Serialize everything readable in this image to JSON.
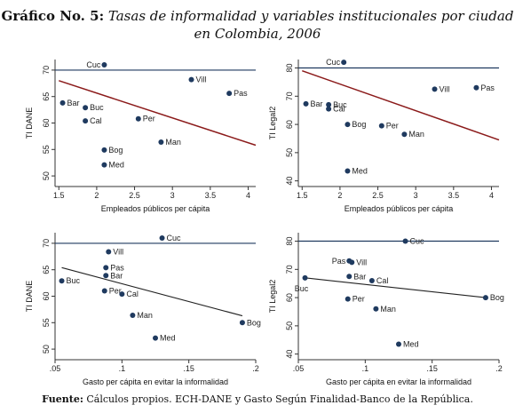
{
  "header": {
    "title_prefix": "Gráfico No. 5:",
    "title_line1": "Tasas de informalidad y variables institucionales  por ciudad",
    "title_line2": "en Colombia, 2006"
  },
  "footer": {
    "source_label": "Fuente:",
    "source_text": "Cálculos propios. ECH-DANE y Gasto Según Finalidad-Banco de la República."
  },
  "colors": {
    "points": "#1f3a5f",
    "fit_line": "#8b1a1a",
    "ref_line": "#1f3a5f"
  },
  "chart_data": [
    {
      "type": "scatter",
      "xlabel": "Empleados públicos per cápita",
      "ylabel": "TI DANE",
      "xlim": [
        1.45,
        4.1
      ],
      "ylim": [
        48,
        72
      ],
      "xticks": [
        1.5,
        2,
        2.5,
        3,
        3.5,
        4
      ],
      "xtick_labels": [
        "1.5",
        "2",
        "2.5",
        "3",
        "3.5",
        "4"
      ],
      "yticks": [
        50,
        55,
        60,
        65,
        70
      ],
      "ytick_labels": [
        "50",
        "55",
        "60",
        "65",
        "70"
      ],
      "hline": 70,
      "fit": [
        [
          1.5,
          68.0
        ],
        [
          4.1,
          55.8
        ]
      ],
      "points": [
        {
          "label": "Cuc",
          "x": 2.1,
          "y": 71.0
        },
        {
          "label": "Vill",
          "x": 3.25,
          "y": 68.2
        },
        {
          "label": "Pas",
          "x": 3.75,
          "y": 65.6
        },
        {
          "label": "Bar",
          "x": 1.55,
          "y": 63.8
        },
        {
          "label": "Buc",
          "x": 1.85,
          "y": 62.9
        },
        {
          "label": "Per",
          "x": 2.55,
          "y": 60.8
        },
        {
          "label": "Cal",
          "x": 1.85,
          "y": 60.4
        },
        {
          "label": "Man",
          "x": 2.85,
          "y": 56.4
        },
        {
          "label": "Bog",
          "x": 2.1,
          "y": 54.9
        },
        {
          "label": "Med",
          "x": 2.1,
          "y": 52.1
        }
      ]
    },
    {
      "type": "scatter",
      "xlabel": "Empleados públicos per cápita",
      "ylabel": "TI Legal2",
      "xlim": [
        1.45,
        4.1
      ],
      "ylim": [
        38,
        83
      ],
      "xticks": [
        1.5,
        2,
        2.5,
        3,
        3.5,
        4
      ],
      "xtick_labels": [
        "1.5",
        "2",
        "2.5",
        "3",
        "3.5",
        "4"
      ],
      "yticks": [
        40,
        50,
        60,
        70,
        80
      ],
      "ytick_labels": [
        "40",
        "50",
        "60",
        "70",
        "80"
      ],
      "hline": 80,
      "fit": [
        [
          1.5,
          79.0
        ],
        [
          4.1,
          54.5
        ]
      ],
      "points": [
        {
          "label": "Cuc",
          "x": 2.05,
          "y": 82.0
        },
        {
          "label": "Vill",
          "x": 3.25,
          "y": 72.5
        },
        {
          "label": "Pas",
          "x": 3.8,
          "y": 73.0
        },
        {
          "label": "Bar",
          "x": 1.55,
          "y": 67.3
        },
        {
          "label": "Buc",
          "x": 1.85,
          "y": 67.0
        },
        {
          "label": "Cal",
          "x": 1.85,
          "y": 65.5
        },
        {
          "label": "Bog",
          "x": 2.1,
          "y": 60.0
        },
        {
          "label": "Per",
          "x": 2.55,
          "y": 59.5
        },
        {
          "label": "Man",
          "x": 2.85,
          "y": 56.5
        },
        {
          "label": "Med",
          "x": 2.1,
          "y": 43.5
        }
      ]
    },
    {
      "type": "scatter",
      "xlabel": "Gasto per cápita en evitar la informalidad",
      "ylabel": "TI DANE",
      "xlim": [
        0.05,
        0.2
      ],
      "ylim": [
        48,
        72
      ],
      "xticks": [
        0.05,
        0.1,
        0.15,
        0.2
      ],
      "xtick_labels": [
        ".05",
        ".1",
        ".15",
        ".2"
      ],
      "yticks": [
        50,
        55,
        60,
        65,
        70
      ],
      "ytick_labels": [
        "50",
        "55",
        "60",
        "65",
        "70"
      ],
      "hline": 70,
      "fit": [
        [
          0.055,
          65.4
        ],
        [
          0.19,
          56.3
        ]
      ],
      "points": [
        {
          "label": "Cuc",
          "x": 0.13,
          "y": 71.0
        },
        {
          "label": "Vill",
          "x": 0.09,
          "y": 68.4
        },
        {
          "label": "Pas",
          "x": 0.088,
          "y": 65.4
        },
        {
          "label": "Bar",
          "x": 0.088,
          "y": 63.9
        },
        {
          "label": "Buc",
          "x": 0.055,
          "y": 62.9
        },
        {
          "label": "Per",
          "x": 0.087,
          "y": 61.0
        },
        {
          "label": "Cal",
          "x": 0.1,
          "y": 60.4
        },
        {
          "label": "Man",
          "x": 0.108,
          "y": 56.4
        },
        {
          "label": "Bog",
          "x": 0.19,
          "y": 55.0
        },
        {
          "label": "Med",
          "x": 0.125,
          "y": 52.1
        }
      ]
    },
    {
      "type": "scatter",
      "xlabel": "Gasto per cápita en evitar la informalidad",
      "ylabel": "TI Legal2",
      "xlim": [
        0.05,
        0.2
      ],
      "ylim": [
        38,
        83
      ],
      "xticks": [
        0.05,
        0.1,
        0.15,
        0.2
      ],
      "xtick_labels": [
        ".05",
        ".1",
        ".15",
        ".2"
      ],
      "yticks": [
        40,
        50,
        60,
        70,
        80
      ],
      "ytick_labels": [
        "40",
        "50",
        "60",
        "70",
        "80"
      ],
      "hline": 80,
      "fit": [
        [
          0.055,
          67.0
        ],
        [
          0.19,
          60.0
        ]
      ],
      "points": [
        {
          "label": "Cuc",
          "x": 0.13,
          "y": 80.0
        },
        {
          "label": "Pas",
          "x": 0.088,
          "y": 73.0
        },
        {
          "label": "Vill",
          "x": 0.09,
          "y": 72.5
        },
        {
          "label": "Bar",
          "x": 0.088,
          "y": 67.5
        },
        {
          "label": "Buc",
          "x": 0.055,
          "y": 67.0
        },
        {
          "label": "Cal",
          "x": 0.105,
          "y": 66.0
        },
        {
          "label": "Per",
          "x": 0.087,
          "y": 59.5
        },
        {
          "label": "Man",
          "x": 0.108,
          "y": 56.0
        },
        {
          "label": "Bog",
          "x": 0.19,
          "y": 60.0
        },
        {
          "label": "Med",
          "x": 0.125,
          "y": 43.5
        }
      ]
    }
  ]
}
